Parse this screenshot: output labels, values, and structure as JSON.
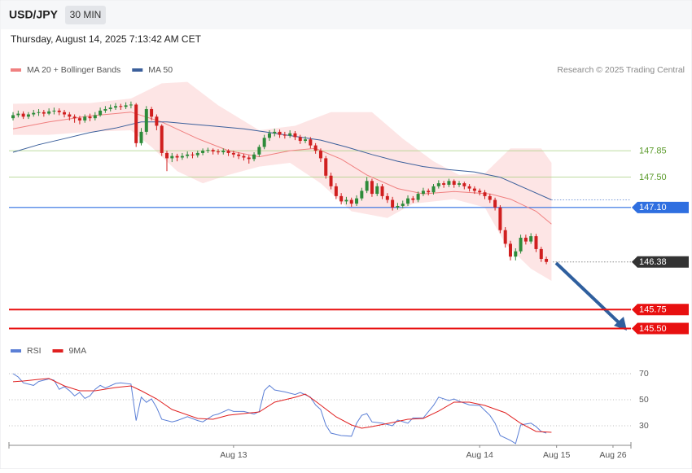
{
  "header": {
    "symbol": "USD/JPY",
    "timeframe": "30 MIN",
    "timestamp": "Thursday, August 14, 2025 7:13:42 AM CET",
    "credit": "Research © 2025 Trading Central"
  },
  "chart_data": [
    {
      "type": "candlestick",
      "up_color": "#2e8b3a",
      "down_color": "#d01f1f",
      "xlim": [
        -0.8,
        120.5
      ],
      "ylim": [
        145.43,
        148.82
      ],
      "ohlc": [
        [
          148.28,
          148.36,
          148.25,
          148.32
        ],
        [
          148.32,
          148.38,
          148.29,
          148.34
        ],
        [
          148.34,
          148.37,
          148.27,
          148.3
        ],
        [
          148.3,
          148.36,
          148.27,
          148.33
        ],
        [
          148.33,
          148.39,
          148.3,
          148.35
        ],
        [
          148.35,
          148.4,
          148.31,
          148.36
        ],
        [
          148.36,
          148.39,
          148.3,
          148.34
        ],
        [
          148.34,
          148.41,
          148.32,
          148.37
        ],
        [
          148.37,
          148.42,
          148.33,
          148.38
        ],
        [
          148.38,
          148.41,
          148.32,
          148.36
        ],
        [
          148.36,
          148.39,
          148.29,
          148.33
        ],
        [
          148.33,
          148.36,
          148.25,
          148.3
        ],
        [
          148.3,
          148.33,
          148.22,
          148.28
        ],
        [
          148.28,
          148.31,
          148.2,
          148.25
        ],
        [
          148.25,
          148.33,
          148.22,
          148.3
        ],
        [
          148.3,
          148.34,
          148.24,
          148.28
        ],
        [
          148.28,
          148.36,
          148.25,
          148.32
        ],
        [
          148.32,
          148.42,
          148.3,
          148.38
        ],
        [
          148.38,
          148.44,
          148.35,
          148.4
        ],
        [
          148.4,
          148.46,
          148.37,
          148.42
        ],
        [
          148.42,
          148.48,
          148.39,
          148.44
        ],
        [
          148.44,
          148.47,
          148.39,
          148.43
        ],
        [
          148.43,
          148.49,
          148.4,
          148.45
        ],
        [
          148.45,
          148.5,
          148.41,
          148.46
        ],
        [
          148.46,
          148.48,
          147.9,
          147.95
        ],
        [
          147.95,
          148.15,
          147.92,
          148.1
        ],
        [
          148.1,
          148.44,
          148.06,
          148.4
        ],
        [
          148.4,
          148.43,
          148.25,
          148.3
        ],
        [
          148.3,
          148.33,
          148.12,
          148.18
        ],
        [
          148.18,
          148.2,
          147.78,
          147.82
        ],
        [
          147.82,
          147.85,
          147.58,
          147.75
        ],
        [
          147.75,
          147.82,
          147.7,
          147.78
        ],
        [
          147.78,
          147.81,
          147.71,
          147.76
        ],
        [
          147.76,
          147.82,
          147.73,
          147.78
        ],
        [
          147.78,
          147.84,
          147.75,
          147.8
        ],
        [
          147.8,
          147.83,
          147.75,
          147.79
        ],
        [
          147.79,
          147.85,
          147.76,
          147.82
        ],
        [
          147.82,
          147.88,
          147.79,
          147.85
        ],
        [
          147.85,
          147.89,
          147.82,
          147.86
        ],
        [
          147.86,
          147.88,
          147.8,
          147.84
        ],
        [
          147.84,
          147.87,
          147.8,
          147.83
        ],
        [
          147.83,
          147.88,
          147.8,
          147.85
        ],
        [
          147.85,
          147.87,
          147.78,
          147.82
        ],
        [
          147.82,
          147.85,
          147.76,
          147.8
        ],
        [
          147.8,
          147.83,
          147.74,
          147.78
        ],
        [
          147.78,
          147.81,
          147.72,
          147.76
        ],
        [
          147.76,
          147.79,
          147.68,
          147.74
        ],
        [
          147.74,
          147.83,
          147.71,
          147.8
        ],
        [
          147.8,
          147.93,
          147.77,
          147.9
        ],
        [
          147.9,
          148.06,
          147.87,
          148.02
        ],
        [
          148.02,
          148.12,
          147.98,
          148.08
        ],
        [
          148.08,
          148.14,
          148.04,
          148.1
        ],
        [
          148.1,
          148.13,
          148.02,
          148.06
        ],
        [
          148.06,
          148.1,
          148.01,
          148.05
        ],
        [
          148.05,
          148.12,
          148.02,
          148.08
        ],
        [
          148.08,
          148.11,
          147.99,
          148.03
        ],
        [
          148.03,
          148.06,
          147.94,
          147.98
        ],
        [
          147.98,
          148.04,
          147.95,
          148.0
        ],
        [
          148.0,
          148.03,
          147.88,
          147.92
        ],
        [
          147.92,
          147.95,
          147.81,
          147.85
        ],
        [
          147.85,
          147.88,
          147.7,
          147.75
        ],
        [
          147.75,
          147.78,
          147.48,
          147.52
        ],
        [
          147.52,
          147.56,
          147.34,
          147.38
        ],
        [
          147.38,
          147.42,
          147.21,
          147.25
        ],
        [
          147.25,
          147.29,
          147.14,
          147.18
        ],
        [
          147.18,
          147.24,
          147.14,
          147.2
        ],
        [
          147.2,
          147.23,
          147.11,
          147.15
        ],
        [
          147.15,
          147.26,
          147.12,
          147.22
        ],
        [
          147.22,
          147.36,
          147.19,
          147.32
        ],
        [
          147.32,
          147.5,
          147.29,
          147.45
        ],
        [
          147.45,
          147.48,
          147.24,
          147.28
        ],
        [
          147.28,
          147.42,
          147.25,
          147.38
        ],
        [
          147.38,
          147.41,
          147.21,
          147.25
        ],
        [
          147.25,
          147.29,
          147.16,
          147.2
        ],
        [
          147.2,
          147.24,
          147.06,
          147.1
        ],
        [
          147.1,
          147.16,
          147.07,
          147.12
        ],
        [
          147.12,
          147.19,
          147.09,
          147.15
        ],
        [
          147.15,
          147.26,
          147.12,
          147.22
        ],
        [
          147.22,
          147.25,
          147.16,
          147.2
        ],
        [
          147.2,
          147.31,
          147.17,
          147.28
        ],
        [
          147.28,
          147.36,
          147.25,
          147.32
        ],
        [
          147.32,
          147.35,
          147.26,
          147.3
        ],
        [
          147.3,
          147.41,
          147.27,
          147.38
        ],
        [
          147.38,
          147.46,
          147.35,
          147.42
        ],
        [
          147.42,
          147.45,
          147.36,
          147.4
        ],
        [
          147.4,
          147.48,
          147.37,
          147.45
        ],
        [
          147.45,
          147.47,
          147.36,
          147.4
        ],
        [
          147.4,
          147.45,
          147.37,
          147.42
        ],
        [
          147.42,
          147.44,
          147.34,
          147.38
        ],
        [
          147.38,
          147.41,
          147.31,
          147.35
        ],
        [
          147.35,
          147.38,
          147.28,
          147.32
        ],
        [
          147.32,
          147.35,
          147.26,
          147.3
        ],
        [
          147.3,
          147.33,
          147.21,
          147.25
        ],
        [
          147.25,
          147.28,
          147.16,
          147.2
        ],
        [
          147.2,
          147.23,
          147.06,
          147.1
        ],
        [
          147.1,
          147.13,
          146.76,
          146.8
        ],
        [
          146.8,
          146.84,
          146.57,
          146.62
        ],
        [
          146.62,
          146.66,
          146.4,
          146.45
        ],
        [
          146.45,
          146.56,
          146.4,
          146.52
        ],
        [
          146.52,
          146.74,
          146.49,
          146.7
        ],
        [
          146.7,
          146.74,
          146.61,
          146.65
        ],
        [
          146.65,
          146.76,
          146.62,
          146.72
        ],
        [
          146.72,
          146.75,
          146.51,
          146.55
        ],
        [
          146.55,
          146.58,
          146.38,
          146.42
        ],
        [
          146.42,
          146.45,
          146.35,
          146.38
        ]
      ],
      "series": [
        {
          "name": "MA 20 + Bollinger Bands",
          "color": "#f08080",
          "x": [
            0,
            7,
            15,
            23,
            29,
            36,
            42,
            48,
            54,
            59,
            64,
            69,
            75,
            80,
            86,
            93,
            97,
            102,
            105
          ],
          "values": [
            148.14,
            148.23,
            148.31,
            148.36,
            148.23,
            148.01,
            147.85,
            147.77,
            147.85,
            147.88,
            147.74,
            147.53,
            147.35,
            147.28,
            147.31,
            147.28,
            147.21,
            147.05,
            146.88
          ],
          "band": {
            "color": "#fde0e0",
            "upper": {
              "x": [
                0,
                7,
                15,
                23,
                29,
                34,
                40,
                48,
                55,
                62,
                70,
                76,
                82,
                87,
                92,
                97,
                103,
                105
              ],
              "values": [
                148.47,
                148.48,
                148.48,
                148.54,
                148.74,
                148.76,
                148.45,
                148.12,
                148.18,
                148.36,
                148.36,
                148.01,
                147.71,
                147.53,
                147.55,
                147.88,
                147.88,
                147.69
              ]
            },
            "lower": {
              "x": [
                0,
                7,
                15,
                23,
                27,
                32,
                37,
                42,
                48,
                54,
                60,
                66,
                73,
                78,
                86,
                92,
                96,
                101,
                105
              ],
              "values": [
                148.06,
                148.06,
                148.1,
                148.12,
                147.9,
                147.58,
                147.42,
                147.53,
                147.64,
                147.69,
                147.42,
                147.05,
                146.96,
                147.15,
                147.21,
                147.1,
                146.62,
                146.29,
                146.13
              ]
            }
          }
        },
        {
          "name": "MA 50",
          "color": "#3b5f9b",
          "extend_dotted": true,
          "x": [
            0,
            5,
            10,
            15,
            20,
            25,
            30,
            35,
            40,
            45,
            50,
            55,
            60,
            65,
            70,
            75,
            80,
            85,
            90,
            95,
            100,
            105
          ],
          "values": [
            147.83,
            147.93,
            148.01,
            148.09,
            148.15,
            148.23,
            148.23,
            148.2,
            148.17,
            148.14,
            148.09,
            148.04,
            147.99,
            147.9,
            147.8,
            147.71,
            147.64,
            147.6,
            147.57,
            147.5,
            147.35,
            147.2
          ]
        }
      ],
      "levels": [
        {
          "value": 147.85,
          "label": "147.85",
          "color": "#a8d080",
          "text_color": "#5a9a2a",
          "line": "thin",
          "tag": false
        },
        {
          "value": 147.5,
          "label": "147.50",
          "color": "#a8d080",
          "text_color": "#5a9a2a",
          "line": "thin",
          "tag": false
        },
        {
          "value": 147.1,
          "label": "147.10",
          "color": "#2f6fe0",
          "text_color": "#ffffff",
          "line": "thin",
          "tag": true
        },
        {
          "value": 146.38,
          "label": "146.38",
          "color": "#333333",
          "text_color": "#ffffff",
          "line": "dotted",
          "tag": true
        },
        {
          "value": 145.75,
          "label": "145.75",
          "color": "#e81010",
          "text_color": "#ffffff",
          "line": "thick",
          "tag": true
        },
        {
          "value": 145.5,
          "label": "145.50",
          "color": "#e81010",
          "text_color": "#ffffff",
          "line": "thick",
          "tag": true
        }
      ]
    },
    {
      "type": "line",
      "grid": true,
      "xlim": [
        -0.8,
        120.5
      ],
      "ylim": [
        15,
        80
      ],
      "yticks": [
        30,
        50,
        70
      ],
      "xticks": [
        {
          "value": 43,
          "label": "Aug 13"
        },
        {
          "value": 91,
          "label": "Aug 14"
        },
        {
          "value": 106,
          "label": "Aug 15"
        },
        {
          "value": 117,
          "label": "Aug 26"
        }
      ],
      "series": [
        {
          "name": "RSI",
          "color": "#5b7fd6",
          "x": [
            0,
            1,
            2,
            4,
            5,
            7,
            8,
            9,
            10,
            11,
            12,
            13,
            14,
            15,
            16,
            17,
            18,
            20,
            21,
            23,
            24,
            25,
            26,
            27,
            28,
            29,
            31,
            32,
            34,
            36,
            37,
            39,
            40,
            42,
            43,
            45,
            47,
            48,
            49,
            50,
            51,
            53,
            55,
            56,
            58,
            59,
            60,
            61,
            62,
            64,
            66,
            67,
            68,
            69,
            70,
            72,
            74,
            75,
            77,
            78,
            80,
            82,
            83,
            85,
            86,
            87,
            89,
            91,
            93,
            94,
            95,
            97,
            98,
            99,
            101,
            102,
            103,
            104
          ],
          "values": [
            70,
            67.5,
            63,
            61,
            64,
            66,
            65,
            58,
            60,
            57,
            53,
            55.6,
            51,
            53,
            58,
            61,
            59,
            62.5,
            63,
            62,
            34,
            52,
            48,
            50.6,
            44,
            35,
            33,
            34,
            37,
            34,
            33,
            38,
            39,
            42.5,
            41,
            41,
            39,
            41,
            57,
            61,
            57.5,
            56,
            54,
            55.6,
            52,
            46,
            42.5,
            30.6,
            24.4,
            22.5,
            22,
            32,
            38,
            39.4,
            33,
            32,
            30,
            34.4,
            32,
            36,
            36,
            45.6,
            52,
            49.4,
            50.6,
            48.8,
            46,
            45.6,
            38,
            32,
            22.5,
            18.8,
            16.3,
            30.6,
            32,
            29.4,
            25.6,
            24.4
          ]
        },
        {
          "name": "9MA",
          "color": "#e02020",
          "x": [
            0,
            2,
            5,
            7,
            10,
            13,
            16,
            20,
            23,
            25,
            28,
            31,
            36,
            39,
            42,
            45,
            48,
            51,
            55,
            57,
            59,
            63,
            66,
            68,
            70,
            74,
            77,
            80,
            83,
            86,
            89,
            92,
            96,
            99,
            102,
            105
          ],
          "values": [
            63.8,
            64.4,
            65.6,
            66.3,
            60.6,
            56.9,
            56.9,
            59.4,
            60.6,
            56.9,
            50.6,
            42.5,
            35.6,
            35,
            38.1,
            39.4,
            40.6,
            48.1,
            51.9,
            54.4,
            48.8,
            36.9,
            30.6,
            28.1,
            29.4,
            32.5,
            35,
            35.6,
            41.3,
            48.1,
            48.1,
            45.6,
            40,
            31.9,
            25.6,
            25
          ]
        }
      ]
    }
  ]
}
